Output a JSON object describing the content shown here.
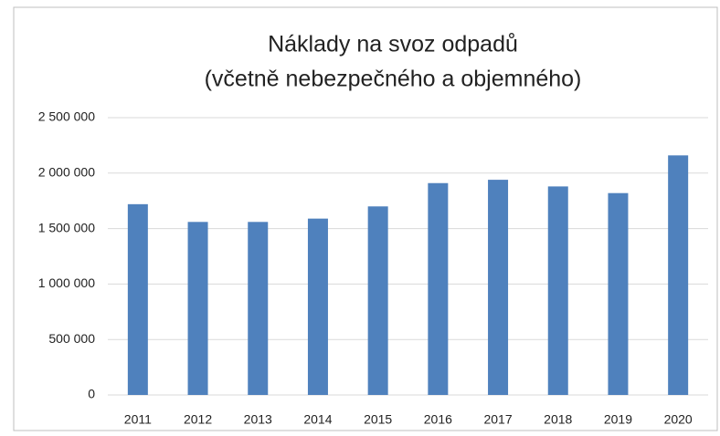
{
  "chart_data": {
    "type": "bar",
    "title": "Náklady na svoz odpadů",
    "subtitle": "(včetně nebezpečného a objemného)",
    "categories": [
      "2011",
      "2012",
      "2013",
      "2014",
      "2015",
      "2016",
      "2017",
      "2018",
      "2019",
      "2020"
    ],
    "values": [
      1720000,
      1560000,
      1560000,
      1590000,
      1700000,
      1910000,
      1940000,
      1880000,
      1820000,
      2160000
    ],
    "color": "#4f81bd",
    "ylim": [
      0,
      2500000
    ],
    "yticks": [
      0,
      {
        "value": 500000,
        "label": "500 000"
      },
      {
        "value": 1000000,
        "label": "1 000 000"
      },
      {
        "value": 1500000,
        "label": "1 500 000"
      },
      {
        "value": 2000000,
        "label": "2 000 000"
      },
      {
        "value": 2500000,
        "label": "2 500 000"
      }
    ],
    "grid": true
  }
}
